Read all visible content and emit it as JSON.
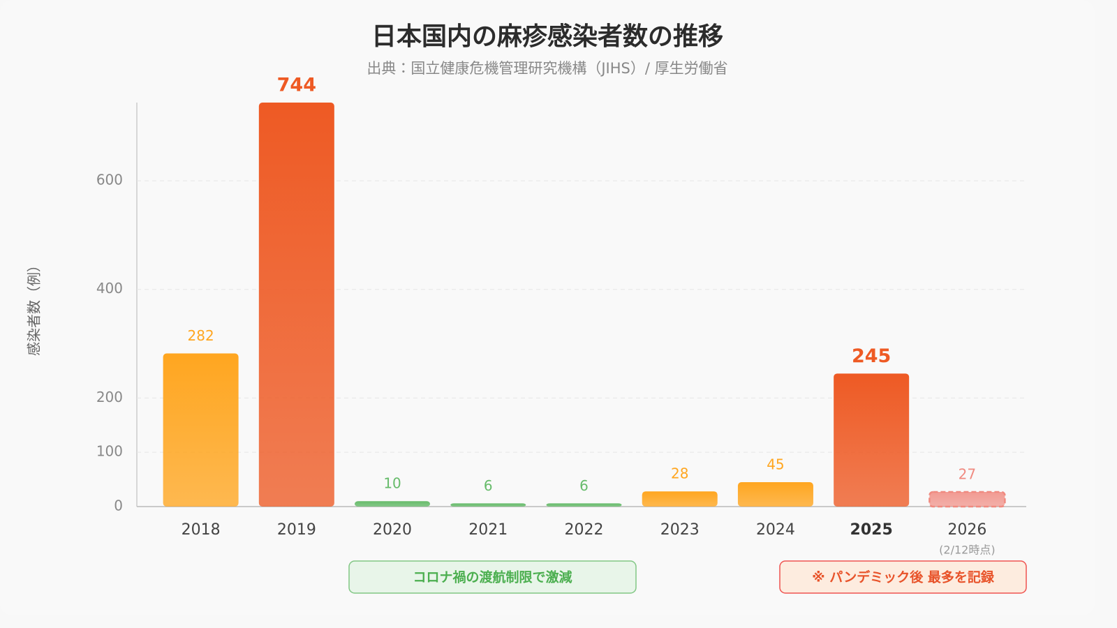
{
  "chart_data": {
    "type": "bar",
    "title": "日本国内の麻疹感染者数の推移",
    "subtitle": "出典：国立健康危機管理研究機構（JIHS）/ 厚生労働省",
    "y_label": "感染者数（例）",
    "categories": [
      "2018",
      "2019",
      "2020",
      "2021",
      "2022",
      "2023",
      "2024",
      "2025",
      "2026"
    ],
    "category_notes": [
      null,
      null,
      null,
      null,
      null,
      null,
      null,
      null,
      "(2/12時点)"
    ],
    "values": [
      282,
      744,
      10,
      6,
      6,
      28,
      45,
      245,
      27
    ],
    "colors": [
      "#ffa620",
      "#ee5a24",
      "#66bb6a",
      "#66bb6a",
      "#66bb6a",
      "#ffa620",
      "#ffa620",
      "#ee5a24",
      "#f08a80"
    ],
    "emphasis": [
      false,
      true,
      false,
      false,
      false,
      false,
      false,
      true,
      false
    ],
    "dashed": [
      false,
      false,
      false,
      false,
      false,
      false,
      false,
      false,
      true
    ],
    "ylim": [
      0,
      744
    ],
    "yticks": [
      0,
      100,
      200,
      400,
      600
    ],
    "grid": true,
    "annotations": [
      {
        "text": "コロナ禍の渡航制限で激減",
        "color": "#4caf50"
      },
      {
        "text": "※ パンデミック後 最多を記録",
        "color": "#e8532a"
      }
    ]
  }
}
